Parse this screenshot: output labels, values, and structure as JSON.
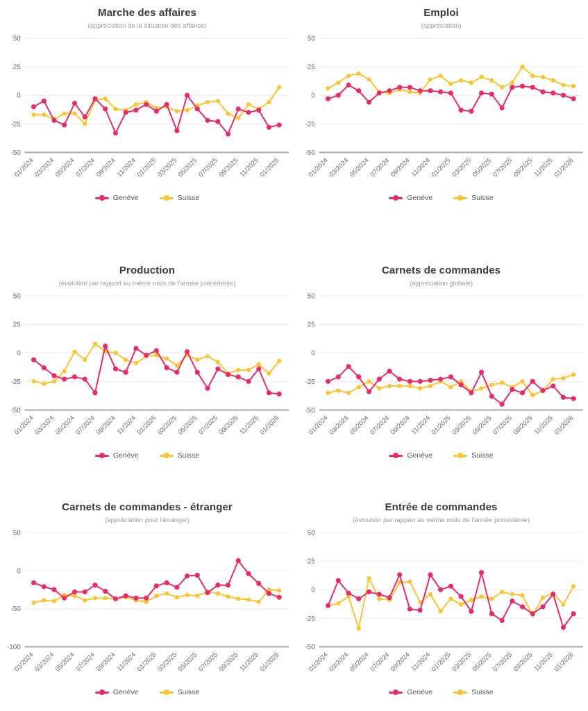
{
  "colors": {
    "geneve": "#ea2a67",
    "suisse": "#fdc32f",
    "grid": "#efefef",
    "axis_line": "#a6a6a6",
    "tick_text": "#6b6b6b",
    "title_text": "#3b3b3b",
    "subtitle_text": "#9b9b9b"
  },
  "months": [
    "01/2024",
    "02/2024",
    "03/2024",
    "04/2024",
    "05/2024",
    "06/2024",
    "07/2024",
    "08/2024",
    "09/2024",
    "10/2024",
    "11/2024",
    "12/2024",
    "01/2025",
    "02/2025",
    "03/2025",
    "04/2025",
    "05/2025",
    "06/2025",
    "07/2025",
    "08/2025",
    "09/2025",
    "10/2025",
    "11/2025",
    "12/2025",
    "01/2026"
  ],
  "x_tick_labels": [
    "01/2024",
    "03/2024",
    "05/2024",
    "07/2024",
    "09/2024",
    "11/2024",
    "01/2025",
    "03/2025",
    "05/2025",
    "07/2025",
    "09/2025",
    "11/2025",
    "01/2026"
  ],
  "chart_data": [
    {
      "type": "line",
      "title": "Marche des affaires",
      "subtitle": "(appréciation de la situation des affaires)",
      "ylim": [
        -50,
        50
      ],
      "yticks": [
        50,
        25,
        0,
        -25,
        -50
      ],
      "grid": true,
      "legend_position": "bottom",
      "series": [
        {
          "name": "Genève",
          "color": "#ea2a67",
          "values": [
            -10,
            -5,
            -22,
            -26,
            -7,
            -19,
            -3,
            -12,
            -33,
            -15,
            -13,
            -8,
            -14,
            -8,
            -31,
            0,
            -12,
            -22,
            -23,
            -34,
            -12,
            -15,
            -13,
            -28,
            -26
          ]
        },
        {
          "name": "Suisse",
          "color": "#fdc32f",
          "values": [
            -17,
            -17,
            -21,
            -16,
            -16,
            -25,
            -4,
            -3,
            -12,
            -13,
            -8,
            -6,
            -11,
            -10,
            -14,
            -13,
            -9,
            -6,
            -5,
            -16,
            -20,
            -8,
            -12,
            -6,
            7
          ]
        }
      ]
    },
    {
      "type": "line",
      "title": "Emploi",
      "subtitle": "(appréciation)",
      "ylim": [
        -50,
        50
      ],
      "yticks": [
        50,
        25,
        0,
        -25,
        -50
      ],
      "grid": true,
      "legend_position": "bottom",
      "series": [
        {
          "name": "Genève",
          "color": "#ea2a67",
          "values": [
            -3,
            0,
            9,
            4,
            -6,
            2,
            4,
            7,
            7,
            4,
            4,
            3,
            2,
            -13,
            -14,
            2,
            1,
            -11,
            7,
            8,
            7,
            3,
            2,
            0,
            -3
          ]
        },
        {
          "name": "Suisse",
          "color": "#fdc32f",
          "values": [
            6,
            11,
            17,
            19,
            14,
            3,
            2,
            5,
            3,
            2,
            14,
            17,
            10,
            13,
            11,
            16,
            13,
            7,
            11,
            25,
            17,
            16,
            13,
            9,
            8
          ]
        }
      ]
    },
    {
      "type": "line",
      "title": "Production",
      "subtitle": "(évolution par rapport au même mois de l'année précédente)",
      "ylim": [
        -50,
        50
      ],
      "yticks": [
        50,
        25,
        0,
        -25,
        -50
      ],
      "grid": true,
      "legend_position": "bottom",
      "series": [
        {
          "name": "Genève",
          "color": "#ea2a67",
          "values": [
            -6,
            -13,
            -20,
            -23,
            -21,
            -23,
            -35,
            6,
            -14,
            -17,
            4,
            -2,
            2,
            -13,
            -17,
            1,
            -17,
            -31,
            -14,
            -19,
            -21,
            -25,
            -14,
            -35,
            -36
          ]
        },
        {
          "name": "Suisse",
          "color": "#fdc32f",
          "values": [
            -25,
            -27,
            -25,
            -16,
            1,
            -6,
            8,
            1,
            0,
            -6,
            -9,
            -3,
            -2,
            -5,
            -11,
            -2,
            -6,
            -3,
            -8,
            -18,
            -15,
            -15,
            -10,
            -18,
            -7
          ]
        }
      ]
    },
    {
      "type": "line",
      "title": "Carnets de commandes",
      "subtitle": "(appréciation globale)",
      "ylim": [
        -50,
        50
      ],
      "yticks": [
        50,
        25,
        0,
        -25,
        -50
      ],
      "grid": true,
      "legend_position": "bottom",
      "series": [
        {
          "name": "Genève",
          "color": "#ea2a67",
          "values": [
            -25,
            -21,
            -12,
            -21,
            -34,
            -23,
            -16,
            -23,
            -25,
            -25,
            -24,
            -23,
            -21,
            -28,
            -35,
            -17,
            -38,
            -45,
            -32,
            -35,
            -25,
            -33,
            -29,
            -39,
            -40
          ]
        },
        {
          "name": "Suisse",
          "color": "#fdc32f",
          "values": [
            -35,
            -33,
            -35,
            -30,
            -25,
            -31,
            -29,
            -29,
            -29,
            -31,
            -29,
            -25,
            -30,
            -25,
            -34,
            -31,
            -28,
            -26,
            -30,
            -25,
            -37,
            -33,
            -23,
            -22,
            -19
          ]
        }
      ]
    },
    {
      "type": "line",
      "title": "Carnets de commandes - étranger",
      "subtitle": "(appréciation pour l'étranger)",
      "ylim": [
        -100,
        50
      ],
      "yticks": [
        50,
        0,
        -50,
        -100
      ],
      "grid": true,
      "legend_position": "bottom",
      "series": [
        {
          "name": "Genève",
          "color": "#ea2a67",
          "values": [
            -16,
            -21,
            -25,
            -36,
            -28,
            -28,
            -19,
            -27,
            -37,
            -33,
            -36,
            -36,
            -20,
            -16,
            -22,
            -7,
            -6,
            -29,
            -19,
            -19,
            13,
            -4,
            -17,
            -30,
            -35
          ]
        },
        {
          "name": "Suisse",
          "color": "#fdc32f",
          "values": [
            -42,
            -39,
            -40,
            -32,
            -33,
            -39,
            -36,
            -36,
            -37,
            -35,
            -39,
            -41,
            -33,
            -30,
            -35,
            -32,
            -33,
            -28,
            -30,
            -34,
            -37,
            -38,
            -41,
            -25,
            -26
          ]
        }
      ]
    },
    {
      "type": "line",
      "title": "Entrée de commandes",
      "subtitle": "(évolution par rapport au même mois de l'année précédente)",
      "ylim": [
        -50,
        50
      ],
      "yticks": [
        50,
        25,
        0,
        -25,
        -50
      ],
      "grid": true,
      "legend_position": "bottom",
      "series": [
        {
          "name": "Genève",
          "color": "#ea2a67",
          "values": [
            -14,
            8,
            -3,
            -8,
            -2,
            -4,
            -7,
            13,
            -17,
            -18,
            13,
            0,
            3,
            -6,
            -19,
            15,
            -21,
            -27,
            -10,
            -15,
            -21,
            -15,
            -4,
            -33,
            -21
          ]
        },
        {
          "name": "Suisse",
          "color": "#fdc32f",
          "values": [
            -14,
            -12,
            -6,
            -34,
            10,
            -8,
            -9,
            6,
            7,
            -11,
            -4,
            -19,
            -8,
            -13,
            -9,
            -6,
            -8,
            -2,
            -4,
            -5,
            -22,
            -7,
            -3,
            -13,
            3
          ]
        }
      ]
    }
  ]
}
